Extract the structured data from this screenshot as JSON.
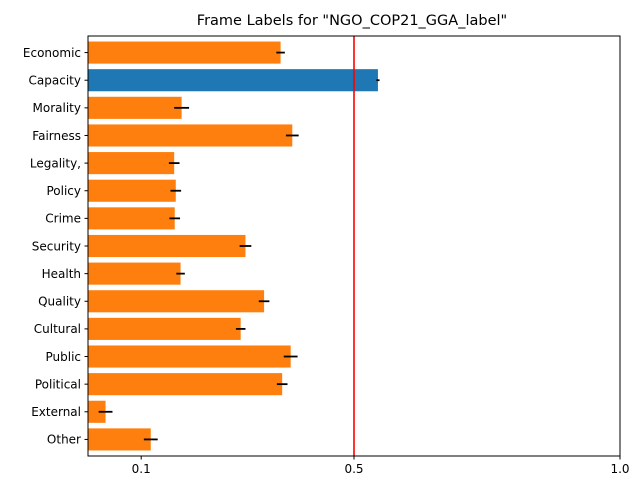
{
  "chart_data": {
    "type": "bar",
    "orientation": "horizontal",
    "title": "Frame Labels for \"NGO_COP21_GGA_label\"",
    "xlabel": "",
    "ylabel": "",
    "xlim": [
      0.0,
      1.0
    ],
    "xticks": [
      {
        "value": 0.1,
        "label": "0.1"
      },
      {
        "value": 0.5,
        "label": "0.5"
      },
      {
        "value": 1.0,
        "label": "1.0"
      }
    ],
    "grid": false,
    "reference_line": {
      "value": 0.5,
      "color": "#ff0000"
    },
    "colors": {
      "default": "#ff7f0e",
      "highlight": "#1f77b4",
      "error": "#000000"
    },
    "categories": [
      "Economic",
      "Capacity",
      "Morality",
      "Fairness",
      "Legality,",
      "Policy",
      "Crime",
      "Security",
      "Health",
      "Quality",
      "Cultural",
      "Public",
      "Political",
      "External",
      "Other"
    ],
    "values": [
      0.362,
      0.545,
      0.176,
      0.384,
      0.162,
      0.165,
      0.163,
      0.296,
      0.174,
      0.331,
      0.287,
      0.381,
      0.365,
      0.033,
      0.118
    ],
    "errors": [
      0.008,
      0.003,
      0.014,
      0.012,
      0.01,
      0.01,
      0.01,
      0.011,
      0.008,
      0.01,
      0.009,
      0.013,
      0.01,
      0.013,
      0.013
    ],
    "highlight": [
      "Capacity"
    ]
  }
}
